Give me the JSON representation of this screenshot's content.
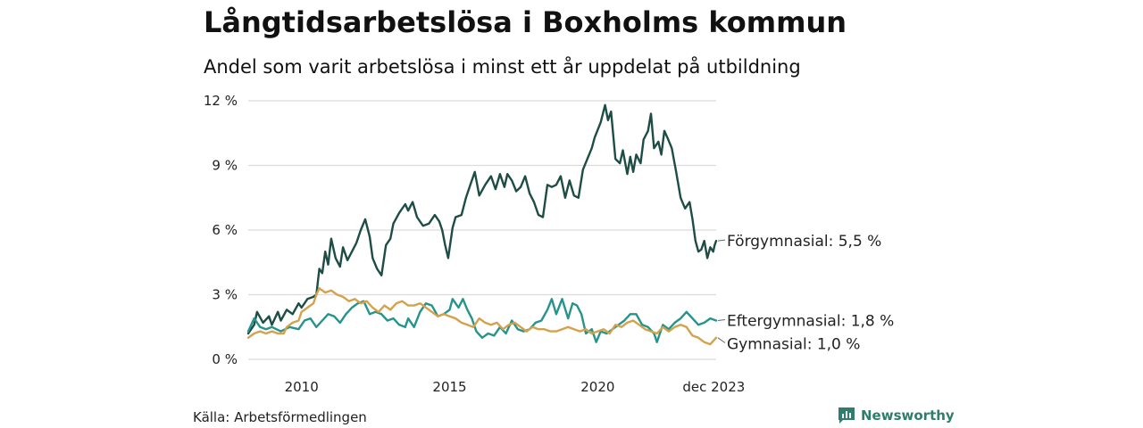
{
  "chart_data": {
    "type": "line",
    "title": "Långtidsarbetslösa i Boxholms kommun",
    "subtitle": "Andel som varit arbetslösa i minst ett år uppdelat på utbildning",
    "ylim": [
      0,
      12
    ],
    "y_ticks": [
      0,
      3,
      6,
      9,
      12
    ],
    "y_tick_labels": [
      "0 %",
      "3 %",
      "6 %",
      "9 %",
      "12 %"
    ],
    "xlim": [
      2008.2,
      2024.0
    ],
    "x_ticks": [
      2010,
      2015,
      2020,
      2023.92
    ],
    "x_tick_labels": [
      "2010",
      "2015",
      "2020",
      "dec 2023"
    ],
    "xlabel": "",
    "ylabel": "",
    "grid": true,
    "series": [
      {
        "name": "Förgymnasial",
        "end_label": "Förgymnasial: 5,5 %",
        "color": "#1e4d45",
        "points": [
          [
            2008.2,
            1.2
          ],
          [
            2008.4,
            1.6
          ],
          [
            2008.5,
            2.2
          ],
          [
            2008.7,
            1.7
          ],
          [
            2008.9,
            2.0
          ],
          [
            2009.0,
            1.6
          ],
          [
            2009.2,
            2.2
          ],
          [
            2009.3,
            1.8
          ],
          [
            2009.5,
            2.3
          ],
          [
            2009.7,
            2.1
          ],
          [
            2009.9,
            2.6
          ],
          [
            2010.0,
            2.4
          ],
          [
            2010.2,
            2.8
          ],
          [
            2010.4,
            2.9
          ],
          [
            2010.5,
            3.0
          ],
          [
            2010.6,
            4.2
          ],
          [
            2010.7,
            4.0
          ],
          [
            2010.8,
            5.0
          ],
          [
            2010.9,
            4.4
          ],
          [
            2011.0,
            5.6
          ],
          [
            2011.15,
            4.7
          ],
          [
            2011.3,
            4.3
          ],
          [
            2011.4,
            5.2
          ],
          [
            2011.55,
            4.6
          ],
          [
            2011.7,
            5.0
          ],
          [
            2011.85,
            5.4
          ],
          [
            2012.0,
            6.0
          ],
          [
            2012.15,
            6.5
          ],
          [
            2012.3,
            5.7
          ],
          [
            2012.4,
            4.7
          ],
          [
            2012.55,
            4.2
          ],
          [
            2012.7,
            3.9
          ],
          [
            2012.85,
            5.3
          ],
          [
            2013.0,
            5.6
          ],
          [
            2013.1,
            6.3
          ],
          [
            2013.3,
            6.8
          ],
          [
            2013.5,
            7.2
          ],
          [
            2013.6,
            6.9
          ],
          [
            2013.75,
            7.3
          ],
          [
            2013.9,
            6.6
          ],
          [
            2014.1,
            6.2
          ],
          [
            2014.3,
            6.3
          ],
          [
            2014.5,
            6.7
          ],
          [
            2014.65,
            6.4
          ],
          [
            2014.75,
            6.0
          ],
          [
            2014.85,
            5.3
          ],
          [
            2014.95,
            4.7
          ],
          [
            2015.1,
            6.1
          ],
          [
            2015.2,
            6.6
          ],
          [
            2015.4,
            6.7
          ],
          [
            2015.55,
            7.5
          ],
          [
            2015.7,
            8.1
          ],
          [
            2015.85,
            8.7
          ],
          [
            2016.0,
            7.6
          ],
          [
            2016.2,
            8.1
          ],
          [
            2016.4,
            8.5
          ],
          [
            2016.55,
            7.9
          ],
          [
            2016.7,
            8.6
          ],
          [
            2016.85,
            8.0
          ],
          [
            2016.95,
            8.6
          ],
          [
            2017.1,
            8.3
          ],
          [
            2017.25,
            7.8
          ],
          [
            2017.4,
            8.0
          ],
          [
            2017.55,
            8.5
          ],
          [
            2017.7,
            7.7
          ],
          [
            2017.85,
            7.3
          ],
          [
            2018.0,
            6.7
          ],
          [
            2018.15,
            6.6
          ],
          [
            2018.3,
            8.1
          ],
          [
            2018.45,
            8.0
          ],
          [
            2018.6,
            8.1
          ],
          [
            2018.75,
            8.5
          ],
          [
            2018.9,
            7.5
          ],
          [
            2019.05,
            8.3
          ],
          [
            2019.2,
            7.6
          ],
          [
            2019.35,
            7.5
          ],
          [
            2019.5,
            8.8
          ],
          [
            2019.65,
            9.3
          ],
          [
            2019.8,
            9.8
          ],
          [
            2019.9,
            10.3
          ],
          [
            2020.1,
            11.0
          ],
          [
            2020.25,
            11.8
          ],
          [
            2020.35,
            11.1
          ],
          [
            2020.45,
            11.5
          ],
          [
            2020.6,
            9.3
          ],
          [
            2020.75,
            9.1
          ],
          [
            2020.85,
            9.7
          ],
          [
            2021.0,
            8.6
          ],
          [
            2021.1,
            9.4
          ],
          [
            2021.2,
            8.7
          ],
          [
            2021.3,
            9.5
          ],
          [
            2021.45,
            9.1
          ],
          [
            2021.55,
            10.2
          ],
          [
            2021.7,
            10.6
          ],
          [
            2021.8,
            11.4
          ],
          [
            2021.9,
            9.8
          ],
          [
            2022.05,
            10.1
          ],
          [
            2022.15,
            9.5
          ],
          [
            2022.25,
            10.6
          ],
          [
            2022.35,
            10.3
          ],
          [
            2022.5,
            9.8
          ],
          [
            2022.65,
            8.7
          ],
          [
            2022.8,
            7.5
          ],
          [
            2022.95,
            7.0
          ],
          [
            2023.1,
            7.3
          ],
          [
            2023.2,
            6.5
          ],
          [
            2023.3,
            5.5
          ],
          [
            2023.4,
            5.0
          ],
          [
            2023.5,
            5.1
          ],
          [
            2023.6,
            5.5
          ],
          [
            2023.7,
            4.7
          ],
          [
            2023.8,
            5.2
          ],
          [
            2023.9,
            5.0
          ],
          [
            2023.95,
            5.3
          ],
          [
            2024.0,
            5.5
          ]
        ]
      },
      {
        "name": "Eftergymnasial",
        "end_label": "Eftergymnasial: 1,8 %",
        "color": "#26948a",
        "points": [
          [
            2008.2,
            1.3
          ],
          [
            2008.4,
            1.9
          ],
          [
            2008.6,
            1.5
          ],
          [
            2008.8,
            1.4
          ],
          [
            2009.0,
            1.5
          ],
          [
            2009.3,
            1.3
          ],
          [
            2009.6,
            1.5
          ],
          [
            2009.9,
            1.4
          ],
          [
            2010.1,
            1.8
          ],
          [
            2010.3,
            1.9
          ],
          [
            2010.5,
            1.5
          ],
          [
            2010.7,
            1.8
          ],
          [
            2010.9,
            2.1
          ],
          [
            2011.1,
            2.0
          ],
          [
            2011.3,
            1.7
          ],
          [
            2011.5,
            2.1
          ],
          [
            2011.7,
            2.4
          ],
          [
            2011.9,
            2.6
          ],
          [
            2012.1,
            2.7
          ],
          [
            2012.3,
            2.1
          ],
          [
            2012.5,
            2.2
          ],
          [
            2012.7,
            2.1
          ],
          [
            2012.9,
            1.8
          ],
          [
            2013.1,
            1.9
          ],
          [
            2013.3,
            1.6
          ],
          [
            2013.5,
            1.5
          ],
          [
            2013.6,
            1.9
          ],
          [
            2013.8,
            1.5
          ],
          [
            2014.0,
            2.2
          ],
          [
            2014.2,
            2.6
          ],
          [
            2014.4,
            2.5
          ],
          [
            2014.6,
            2.0
          ],
          [
            2014.8,
            2.1
          ],
          [
            2015.0,
            2.3
          ],
          [
            2015.1,
            2.8
          ],
          [
            2015.3,
            2.4
          ],
          [
            2015.45,
            2.8
          ],
          [
            2015.6,
            2.3
          ],
          [
            2015.75,
            1.9
          ],
          [
            2015.9,
            1.3
          ],
          [
            2016.1,
            1.0
          ],
          [
            2016.3,
            1.2
          ],
          [
            2016.5,
            1.1
          ],
          [
            2016.7,
            1.5
          ],
          [
            2016.9,
            1.2
          ],
          [
            2017.1,
            1.8
          ],
          [
            2017.3,
            1.4
          ],
          [
            2017.5,
            1.3
          ],
          [
            2017.7,
            1.4
          ],
          [
            2017.9,
            1.7
          ],
          [
            2018.1,
            1.8
          ],
          [
            2018.3,
            2.3
          ],
          [
            2018.45,
            2.8
          ],
          [
            2018.6,
            2.1
          ],
          [
            2018.8,
            2.8
          ],
          [
            2019.0,
            1.9
          ],
          [
            2019.15,
            2.6
          ],
          [
            2019.3,
            2.5
          ],
          [
            2019.45,
            2.1
          ],
          [
            2019.6,
            1.2
          ],
          [
            2019.8,
            1.4
          ],
          [
            2019.95,
            0.8
          ],
          [
            2020.1,
            1.3
          ],
          [
            2020.3,
            1.2
          ],
          [
            2020.5,
            1.4
          ],
          [
            2020.7,
            1.6
          ],
          [
            2020.9,
            1.8
          ],
          [
            2021.1,
            2.1
          ],
          [
            2021.3,
            2.1
          ],
          [
            2021.5,
            1.6
          ],
          [
            2021.7,
            1.5
          ],
          [
            2021.9,
            1.2
          ],
          [
            2022.0,
            0.8
          ],
          [
            2022.2,
            1.6
          ],
          [
            2022.4,
            1.4
          ],
          [
            2022.6,
            1.7
          ],
          [
            2022.8,
            1.9
          ],
          [
            2023.0,
            2.2
          ],
          [
            2023.2,
            1.9
          ],
          [
            2023.4,
            1.6
          ],
          [
            2023.6,
            1.7
          ],
          [
            2023.8,
            1.9
          ],
          [
            2024.0,
            1.8
          ]
        ]
      },
      {
        "name": "Gymnasial",
        "end_label": "Gymnasial: 1,0 %",
        "color": "#d4a24c",
        "points": [
          [
            2008.2,
            1.0
          ],
          [
            2008.4,
            1.2
          ],
          [
            2008.6,
            1.3
          ],
          [
            2008.8,
            1.2
          ],
          [
            2009.0,
            1.3
          ],
          [
            2009.2,
            1.2
          ],
          [
            2009.4,
            1.2
          ],
          [
            2009.5,
            1.5
          ],
          [
            2009.7,
            1.7
          ],
          [
            2009.9,
            1.8
          ],
          [
            2010.0,
            2.2
          ],
          [
            2010.2,
            2.4
          ],
          [
            2010.4,
            2.6
          ],
          [
            2010.5,
            3.0
          ],
          [
            2010.6,
            3.3
          ],
          [
            2010.8,
            3.1
          ],
          [
            2011.0,
            3.2
          ],
          [
            2011.2,
            3.0
          ],
          [
            2011.4,
            2.9
          ],
          [
            2011.6,
            2.7
          ],
          [
            2011.8,
            2.8
          ],
          [
            2012.0,
            2.6
          ],
          [
            2012.2,
            2.7
          ],
          [
            2012.4,
            2.4
          ],
          [
            2012.6,
            2.2
          ],
          [
            2012.8,
            2.5
          ],
          [
            2013.0,
            2.3
          ],
          [
            2013.2,
            2.6
          ],
          [
            2013.4,
            2.7
          ],
          [
            2013.6,
            2.5
          ],
          [
            2013.8,
            2.5
          ],
          [
            2014.0,
            2.6
          ],
          [
            2014.2,
            2.4
          ],
          [
            2014.4,
            2.2
          ],
          [
            2014.6,
            2.0
          ],
          [
            2014.8,
            2.1
          ],
          [
            2015.0,
            2.0
          ],
          [
            2015.2,
            1.9
          ],
          [
            2015.4,
            1.7
          ],
          [
            2015.6,
            1.6
          ],
          [
            2015.8,
            1.5
          ],
          [
            2016.0,
            1.9
          ],
          [
            2016.2,
            1.7
          ],
          [
            2016.4,
            1.6
          ],
          [
            2016.6,
            1.7
          ],
          [
            2016.8,
            1.4
          ],
          [
            2017.0,
            1.6
          ],
          [
            2017.2,
            1.7
          ],
          [
            2017.4,
            1.5
          ],
          [
            2017.6,
            1.3
          ],
          [
            2017.8,
            1.5
          ],
          [
            2018.0,
            1.4
          ],
          [
            2018.2,
            1.4
          ],
          [
            2018.4,
            1.3
          ],
          [
            2018.6,
            1.3
          ],
          [
            2018.8,
            1.4
          ],
          [
            2019.0,
            1.5
          ],
          [
            2019.2,
            1.4
          ],
          [
            2019.4,
            1.3
          ],
          [
            2019.6,
            1.4
          ],
          [
            2019.8,
            1.2
          ],
          [
            2020.0,
            1.3
          ],
          [
            2020.2,
            1.4
          ],
          [
            2020.4,
            1.2
          ],
          [
            2020.6,
            1.6
          ],
          [
            2020.8,
            1.5
          ],
          [
            2021.0,
            1.7
          ],
          [
            2021.2,
            1.8
          ],
          [
            2021.4,
            1.6
          ],
          [
            2021.6,
            1.4
          ],
          [
            2021.8,
            1.3
          ],
          [
            2022.0,
            1.2
          ],
          [
            2022.2,
            1.5
          ],
          [
            2022.4,
            1.3
          ],
          [
            2022.6,
            1.5
          ],
          [
            2022.8,
            1.6
          ],
          [
            2023.0,
            1.5
          ],
          [
            2023.2,
            1.1
          ],
          [
            2023.4,
            1.0
          ],
          [
            2023.6,
            0.8
          ],
          [
            2023.8,
            0.7
          ],
          [
            2024.0,
            1.0
          ]
        ]
      }
    ]
  },
  "footer": {
    "source": "Källa: Arbetsförmedlingen",
    "brand": "Newsworthy"
  },
  "colors": {
    "grid": "#dcdcdc",
    "brand": "#2f7d6c"
  },
  "icons": {
    "brand_logo": "bar-chart-bubble-icon"
  }
}
